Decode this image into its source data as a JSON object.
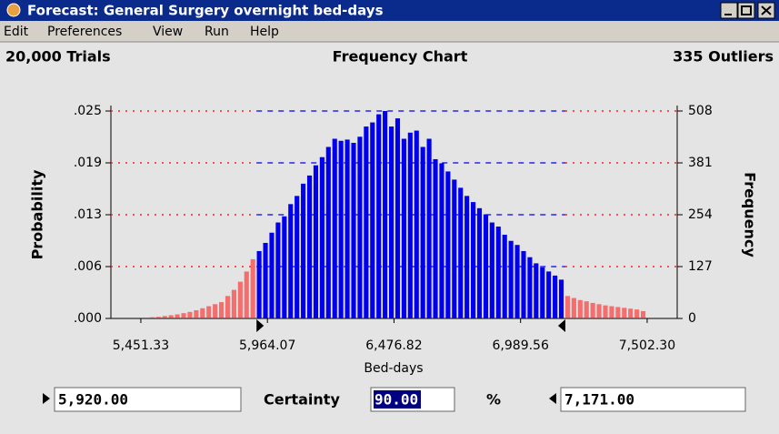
{
  "window": {
    "title": "Forecast: General Surgery overnight bed-days"
  },
  "menu": [
    "Edit",
    "Preferences",
    "View",
    "Run",
    "Help"
  ],
  "chart_data": {
    "type": "histogram",
    "title": "Frequency Chart",
    "trials_label": "20,000 Trials",
    "outliers_label": "335 Outliers",
    "x_label": "Bed-days",
    "y_label": "Probability",
    "y2_label": "Frequency",
    "colors": {
      "inside": "#0000ee",
      "outside": "#ff2020"
    },
    "bins": [
      5460,
      5485.5,
      5511,
      5536.5,
      5562,
      5587.5,
      5613,
      5638.5,
      5664,
      5689.5,
      5715,
      5740.5,
      5766,
      5791.5,
      5817,
      5842.5,
      5868,
      5893.5,
      5919,
      5944.5,
      5970,
      5995.5,
      6021,
      6046.5,
      6072,
      6097.5,
      6123,
      6148.5,
      6174,
      6199.5,
      6225,
      6250.5,
      6276,
      6301.5,
      6327,
      6352.5,
      6378,
      6403.5,
      6429,
      6454.5,
      6480,
      6505.5,
      6531,
      6556.5,
      6582,
      6607.5,
      6633,
      6658.5,
      6684,
      6709.5,
      6735,
      6760.5,
      6786,
      6811.5,
      6837,
      6862.5,
      6888,
      6913.5,
      6939,
      6964.5,
      6990,
      7015.5,
      7041,
      7066.5,
      7092,
      7117.5,
      7143,
      7168.5,
      7194,
      7219.5,
      7245,
      7270.5,
      7296,
      7321.5,
      7347,
      7372.5,
      7398,
      7423.5,
      7449,
      7474.5,
      7500
    ],
    "series": [
      {
        "axis": "y2",
        "values": [
          2,
          3,
          4,
          6,
          8,
          10,
          13,
          16,
          20,
          25,
          30,
          35,
          40,
          55,
          70,
          90,
          115,
          145,
          165,
          185,
          210,
          235,
          250,
          280,
          300,
          330,
          350,
          375,
          395,
          420,
          440,
          435,
          438,
          430,
          445,
          470,
          480,
          500,
          508,
          470,
          490,
          440,
          455,
          460,
          420,
          440,
          390,
          380,
          360,
          340,
          320,
          300,
          285,
          270,
          255,
          235,
          225,
          205,
          190,
          180,
          165,
          150,
          135,
          125,
          115,
          105,
          95,
          55,
          50,
          45,
          42,
          38,
          35,
          32,
          30,
          28,
          26,
          24,
          22,
          18
        ]
      }
    ],
    "xlim": [
      5330,
      7624
    ],
    "xticks": [
      {
        "value": 5451.33,
        "label": "5,451.33"
      },
      {
        "value": 5964.07,
        "label": "5,964.07"
      },
      {
        "value": 6476.82,
        "label": "6,476.82"
      },
      {
        "value": 6989.56,
        "label": "6,989.56"
      },
      {
        "value": 7502.3,
        "label": "7,502.30"
      }
    ],
    "ylim": [
      0,
      0.0254
    ],
    "yticks": [
      {
        "value": 0,
        "label": ".000"
      },
      {
        "value": 0.00635,
        "label": ".006"
      },
      {
        "value": 0.0127,
        "label": ".013"
      },
      {
        "value": 0.01905,
        "label": ".019"
      },
      {
        "value": 0.0254,
        "label": ".025"
      }
    ],
    "y2lim": [
      0,
      508
    ],
    "y2ticks": [
      0,
      127,
      254,
      381,
      508
    ],
    "grid": true,
    "certainty_range": [
      {
        "value": 5920,
        "label": "5,920.00"
      },
      {
        "value": 7171,
        "label": "7,171.00"
      }
    ],
    "certainty": {
      "label": "Certainty",
      "value": 90,
      "value_label": "90.00",
      "unit": "%"
    }
  }
}
